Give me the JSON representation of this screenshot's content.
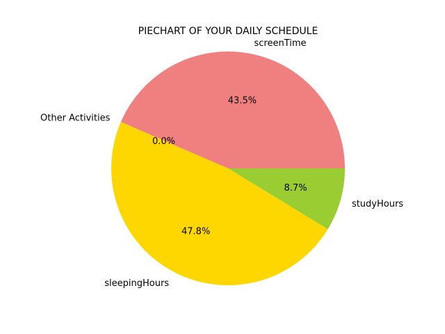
{
  "chart_data": {
    "type": "pie",
    "title": "PIECHART OF YOUR DAILY SCHEDULE",
    "start_angle_deg": 0,
    "direction": "counterclockwise",
    "slices": [
      {
        "label": "screenTime",
        "value": 43.5,
        "pct_label": "43.5%",
        "color": "#F08080"
      },
      {
        "label": "Other Activities",
        "value": 0.0,
        "pct_label": "0.0%",
        "color": "#87CEEB"
      },
      {
        "label": "sleepingHours",
        "value": 47.8,
        "pct_label": "47.8%",
        "color": "#FFD700"
      },
      {
        "label": "studyHours",
        "value": 8.7,
        "pct_label": "8.7%",
        "color": "#9ACD32"
      }
    ]
  }
}
